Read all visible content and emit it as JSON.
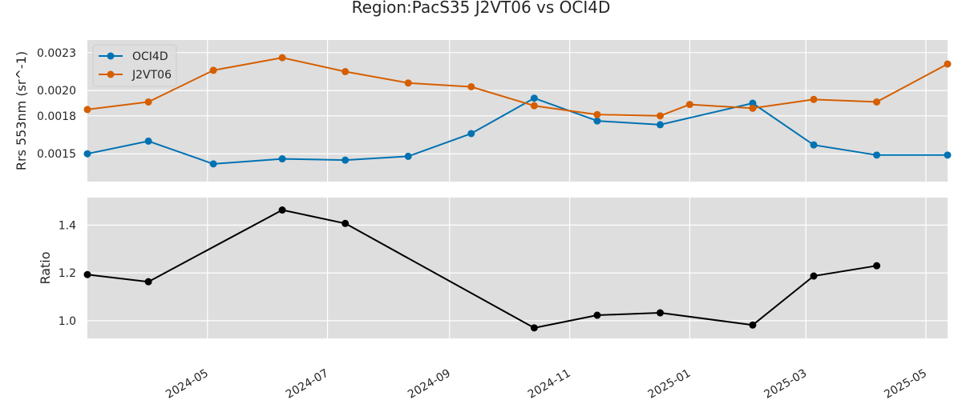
{
  "figure_title": "Region:PacS35 J2VT06 vs OCI4D",
  "colors": {
    "plot_bg": "#dedede",
    "grid": "#ffffff",
    "oci": "#0072b2",
    "j2": "#d55e00",
    "ratio": "#000000"
  },
  "chart_data": [
    {
      "type": "line",
      "ylabel": "Rrs 553nm (sr^-1)",
      "xlim": [
        "2024-03-01",
        "2025-05-12"
      ],
      "ylim": [
        0.00128,
        0.0024
      ],
      "yticks": [
        0.0015,
        0.0018,
        0.002,
        0.0023
      ],
      "ytick_labels": [
        "0.0015",
        "0.0018",
        "0.0020",
        "0.0023"
      ],
      "grid": true,
      "legend_position": "upper-left",
      "series": [
        {
          "name": "OCI4D",
          "color_key": "oci",
          "points": [
            {
              "x": "2024-03-01",
              "y": 0.0015
            },
            {
              "x": "2024-04-01",
              "y": 0.0016
            },
            {
              "x": "2024-05-04",
              "y": 0.00142
            },
            {
              "x": "2024-06-08",
              "y": 0.00146
            },
            {
              "x": "2024-07-10",
              "y": 0.00145
            },
            {
              "x": "2024-08-11",
              "y": 0.00148
            },
            {
              "x": "2024-09-12",
              "y": 0.00166
            },
            {
              "x": "2024-10-14",
              "y": 0.00194
            },
            {
              "x": "2024-11-15",
              "y": 0.00176
            },
            {
              "x": "2024-12-17",
              "y": 0.00173
            },
            {
              "x": "2025-02-02",
              "y": 0.0019
            },
            {
              "x": "2025-03-05",
              "y": 0.00157
            },
            {
              "x": "2025-04-06",
              "y": 0.00149
            },
            {
              "x": "2025-05-12",
              "y": 0.00149
            }
          ]
        },
        {
          "name": "J2VT06",
          "color_key": "j2",
          "points": [
            {
              "x": "2024-03-01",
              "y": 0.00185
            },
            {
              "x": "2024-04-01",
              "y": 0.00191
            },
            {
              "x": "2024-05-04",
              "y": 0.00216
            },
            {
              "x": "2024-06-08",
              "y": 0.00226
            },
            {
              "x": "2024-07-10",
              "y": 0.00215
            },
            {
              "x": "2024-08-11",
              "y": 0.00206
            },
            {
              "x": "2024-09-12",
              "y": 0.00203
            },
            {
              "x": "2024-10-14",
              "y": 0.00188
            },
            {
              "x": "2024-11-15",
              "y": 0.00181
            },
            {
              "x": "2024-12-17",
              "y": 0.0018
            },
            {
              "x": "2025-01-01",
              "y": 0.00189
            },
            {
              "x": "2025-02-02",
              "y": 0.00186
            },
            {
              "x": "2025-03-05",
              "y": 0.00193
            },
            {
              "x": "2025-04-06",
              "y": 0.00191
            },
            {
              "x": "2025-05-12",
              "y": 0.00221
            }
          ]
        }
      ]
    },
    {
      "type": "line",
      "ylabel": "Ratio",
      "xlim": [
        "2024-03-01",
        "2025-05-12"
      ],
      "ylim": [
        0.926,
        1.515
      ],
      "yticks": [
        1.0,
        1.2,
        1.4
      ],
      "ytick_labels": [
        "1.0",
        "1.2",
        "1.4"
      ],
      "grid": true,
      "xticks": [
        "2024-05-01",
        "2024-07-01",
        "2024-09-01",
        "2024-11-01",
        "2025-01-01",
        "2025-03-01",
        "2025-05-01"
      ],
      "xtick_labels": [
        "2024-05",
        "2024-07",
        "2024-09",
        "2024-11",
        "2025-01",
        "2025-03",
        "2025-05"
      ],
      "series": [
        {
          "color_key": "ratio",
          "points": [
            {
              "x": "2024-03-01",
              "y": 1.193
            },
            {
              "x": "2024-04-01",
              "y": 1.163
            },
            {
              "x": "2024-06-08",
              "y": 1.463
            },
            {
              "x": "2024-07-10",
              "y": 1.407
            },
            {
              "x": "2024-10-14",
              "y": 0.97
            },
            {
              "x": "2024-11-15",
              "y": 1.023
            },
            {
              "x": "2024-12-17",
              "y": 1.033
            },
            {
              "x": "2025-02-02",
              "y": 0.982
            },
            {
              "x": "2025-03-05",
              "y": 1.187
            },
            {
              "x": "2025-04-06",
              "y": 1.23
            }
          ]
        }
      ]
    }
  ]
}
